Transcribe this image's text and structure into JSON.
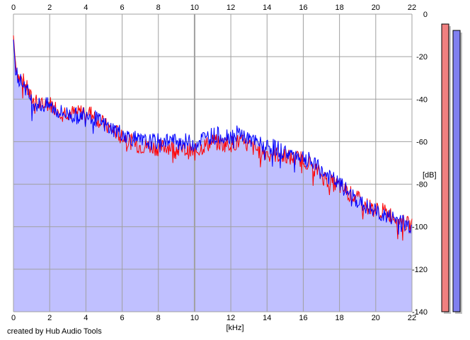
{
  "chart_data": {
    "type": "area",
    "title": "",
    "xlabel": "[kHz]",
    "ylabel": "[dB]",
    "xlim": [
      0,
      22
    ],
    "ylim": [
      -140,
      0
    ],
    "x_ticks": [
      "0",
      "2",
      "4",
      "6",
      "8",
      "10",
      "12",
      "14",
      "16",
      "18",
      "20",
      "22"
    ],
    "y_ticks": [
      "0",
      "-20",
      "-40",
      "-60",
      "-80",
      "-100",
      "-120",
      "-140"
    ],
    "grid": true,
    "series": [
      {
        "color": "#ff0000",
        "x": [
          0,
          0.1,
          0.3,
          0.6,
          1,
          1.5,
          2,
          2.5,
          3,
          3.5,
          4,
          4.5,
          5,
          5.5,
          6,
          6.5,
          7,
          7.5,
          8,
          8.5,
          9,
          9.5,
          10,
          10.5,
          11,
          11.5,
          12,
          12.5,
          13,
          13.5,
          14,
          14.5,
          15,
          15.5,
          16,
          16.5,
          17,
          17.5,
          18,
          18.5,
          19,
          19.5,
          20,
          20.5,
          21,
          21.5,
          22
        ],
        "values": [
          -10,
          -22,
          -30,
          -32,
          -40,
          -43,
          -42,
          -45,
          -46,
          -47,
          -45,
          -48,
          -52,
          -55,
          -57,
          -60,
          -62,
          -62,
          -63,
          -62,
          -63,
          -64,
          -65,
          -62,
          -60,
          -61,
          -61,
          -60,
          -62,
          -64,
          -65,
          -66,
          -67,
          -68,
          -68,
          -71,
          -76,
          -79,
          -81,
          -84,
          -87,
          -90,
          -92,
          -93,
          -95,
          -98,
          -100
        ]
      },
      {
        "color": "#0000ff",
        "x": [
          0,
          0.1,
          0.3,
          0.6,
          1,
          1.5,
          2,
          2.5,
          3,
          3.5,
          4,
          4.5,
          5,
          5.5,
          6,
          6.5,
          7,
          7.5,
          8,
          8.5,
          9,
          9.5,
          10,
          10.5,
          11,
          11.5,
          12,
          12.5,
          13,
          13.5,
          14,
          14.5,
          15,
          15.5,
          16,
          16.5,
          17,
          17.5,
          18,
          18.5,
          19,
          19.5,
          20,
          20.5,
          21,
          21.5,
          22
        ],
        "values": [
          -12,
          -24,
          -31,
          -33,
          -41,
          -43,
          -43,
          -46,
          -47,
          -48,
          -46,
          -49,
          -52,
          -54,
          -56,
          -58,
          -60,
          -60,
          -60,
          -59,
          -60,
          -60,
          -61,
          -58,
          -57,
          -57,
          -57,
          -56,
          -59,
          -61,
          -62,
          -63,
          -65,
          -66,
          -67,
          -70,
          -74,
          -77,
          -80,
          -84,
          -88,
          -91,
          -93,
          -95,
          -96,
          -98,
          -100
        ]
      }
    ],
    "fill_color": "#c0c0ff",
    "meters": [
      {
        "color": "#f08080",
        "level_db": -2
      },
      {
        "color": "#8080f0",
        "level_db": -5
      }
    ]
  },
  "credit": "created by Hub Audio Tools"
}
